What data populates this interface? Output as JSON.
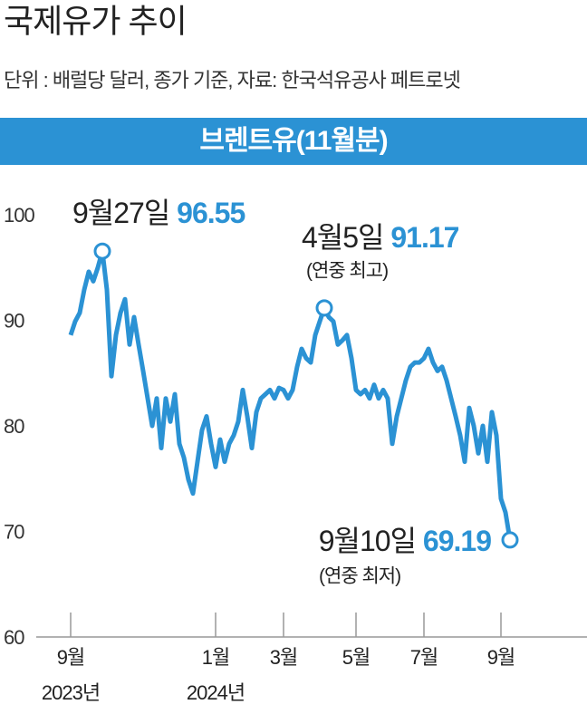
{
  "chart_data": {
    "type": "line",
    "title": "국제유가 추이",
    "subtitle": "단위 : 배럴당 달러, 종가 기준, 자료:  한국석유공사 페트로넷",
    "panel_title": "브렌트유(11월분)",
    "annotations": [
      "9월27일",
      "4월5일",
      "(연중 최고)",
      "9월10일",
      "(연중 최저)"
    ],
    "categories": [
      "9월",
      null,
      null,
      null,
      null,
      null,
      null,
      null,
      null,
      null,
      null,
      null,
      null,
      null,
      null,
      null,
      null,
      null,
      null,
      null,
      null,
      null,
      null,
      null,
      null,
      null,
      null,
      null,
      null,
      null,
      null,
      null,
      "1월",
      null,
      null,
      null,
      null,
      null,
      null,
      null,
      null,
      null,
      null,
      null,
      null,
      null,
      null,
      "3월",
      null,
      null,
      null,
      null,
      null,
      null,
      null,
      null,
      null,
      null,
      null,
      null,
      null,
      null,
      null,
      "5월",
      null,
      null,
      null,
      null,
      null,
      null,
      null,
      null,
      null,
      null,
      null,
      null,
      null,
      null,
      "7월",
      null,
      null,
      null,
      null,
      null,
      null,
      null,
      null,
      null,
      null,
      null,
      null,
      null,
      null,
      null,
      null,
      "9월",
      null,
      null
    ],
    "category_years": [
      "2023년",
      null,
      null,
      null,
      null,
      null,
      null,
      null,
      null,
      null,
      null,
      null,
      null,
      null,
      null,
      null,
      null,
      null,
      null,
      null,
      null,
      null,
      null,
      null,
      null,
      null,
      null,
      null,
      null,
      null,
      null,
      null,
      "2024년",
      null,
      null,
      null,
      null,
      null,
      null,
      null,
      null,
      null,
      null,
      null,
      null,
      null,
      null,
      null,
      null,
      null,
      null,
      null,
      null,
      null,
      null,
      null,
      null,
      null,
      null,
      null,
      null,
      null,
      null,
      null,
      null,
      null,
      null,
      null,
      null,
      null,
      null,
      null,
      null,
      null,
      null,
      null,
      null,
      null,
      null,
      null,
      null,
      null,
      null,
      null,
      null,
      null,
      null,
      null,
      null,
      null,
      null,
      null,
      null,
      null,
      null,
      null,
      null,
      null
    ],
    "values": [
      88.6,
      89.9,
      90.7,
      92.9,
      94.6,
      93.7,
      95.0,
      96.55,
      92.9,
      84.7,
      88.6,
      90.7,
      92.0,
      87.7,
      90.3,
      87.7,
      85.2,
      82.6,
      80.0,
      82.6,
      77.9,
      82.6,
      80.4,
      83.0,
      78.3,
      77.0,
      74.9,
      73.6,
      76.6,
      79.6,
      80.9,
      78.3,
      76.1,
      78.7,
      76.6,
      78.3,
      79.1,
      80.4,
      83.4,
      80.9,
      77.9,
      81.3,
      82.6,
      83.0,
      83.4,
      82.6,
      83.6,
      83.4,
      82.6,
      83.4,
      85.6,
      87.3,
      86.4,
      86.0,
      88.6,
      89.9,
      91.17,
      90.3,
      89.9,
      87.7,
      88.1,
      88.6,
      86.4,
      83.4,
      83.0,
      83.4,
      82.6,
      83.9,
      82.6,
      83.4,
      82.6,
      78.3,
      80.9,
      82.6,
      84.3,
      85.6,
      86.0,
      86.0,
      86.4,
      87.3,
      86.0,
      85.2,
      85.6,
      84.3,
      82.6,
      80.9,
      79.1,
      76.6,
      81.7,
      80.0,
      77.4,
      80.0,
      76.6,
      81.3,
      79.1,
      73.1,
      71.8,
      69.19
    ],
    "color": "#2b92d4",
    "ylim": [
      60,
      100
    ],
    "yticks": [
      60,
      70,
      80,
      90,
      100
    ]
  }
}
